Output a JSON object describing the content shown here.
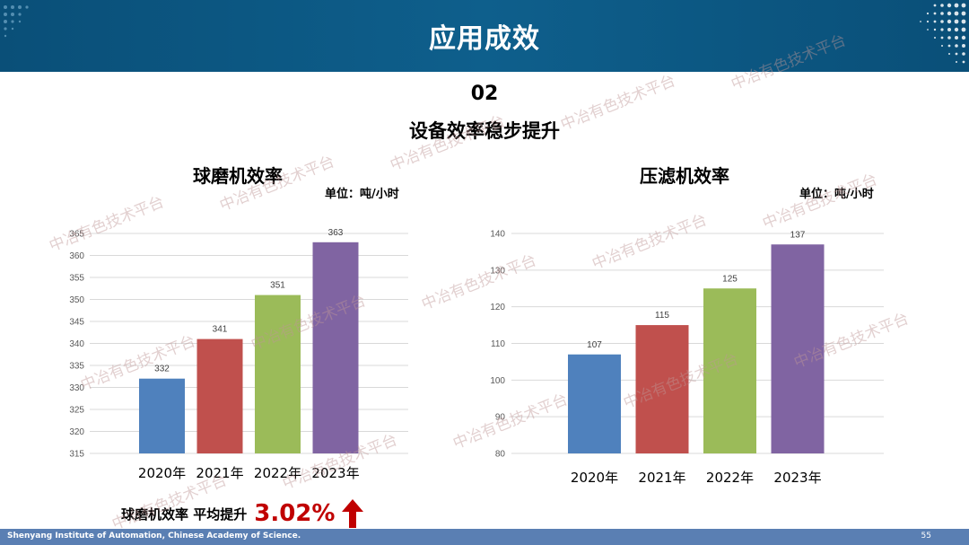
{
  "header": {
    "title": "应用成效"
  },
  "section": {
    "number": "02",
    "title": "设备效率稳步提升"
  },
  "charts": {
    "ball_mill": {
      "title": "球磨机效率",
      "unit": "单位：吨/小时"
    },
    "filter_press": {
      "title": "压滤机效率",
      "unit": "单位：吨/小时"
    }
  },
  "chart_data": [
    {
      "type": "bar",
      "title": "球磨机效率",
      "unit": "单位：吨/小时",
      "categories": [
        "2020年",
        "2021年",
        "2022年",
        "2023年"
      ],
      "values": [
        332,
        341,
        351,
        363
      ],
      "colors": [
        "#4f81bd",
        "#c0504d",
        "#9bbb59",
        "#8064a2"
      ],
      "ylim": [
        315,
        365
      ],
      "yticks": [
        315,
        320,
        325,
        330,
        335,
        340,
        345,
        350,
        355,
        360,
        365
      ],
      "grid": true
    },
    {
      "type": "bar",
      "title": "压滤机效率",
      "unit": "单位：吨/小时",
      "categories": [
        "2020年",
        "2021年",
        "2022年",
        "2023年"
      ],
      "values": [
        107,
        115,
        125,
        137
      ],
      "colors": [
        "#4f81bd",
        "#c0504d",
        "#9bbb59",
        "#8064a2"
      ],
      "ylim": [
        80,
        140
      ],
      "yticks": [
        80,
        90,
        100,
        110,
        120,
        130,
        140
      ],
      "grid": true
    }
  ],
  "summary": {
    "label": "球磨机效率 平均提升",
    "value": "3.02%",
    "arrow_color": "#c00000"
  },
  "footer": {
    "institution": "Shenyang Institute of Automation, Chinese Academy of Science.",
    "page": "55"
  },
  "watermark": {
    "text": "中冶有色技术平台"
  }
}
